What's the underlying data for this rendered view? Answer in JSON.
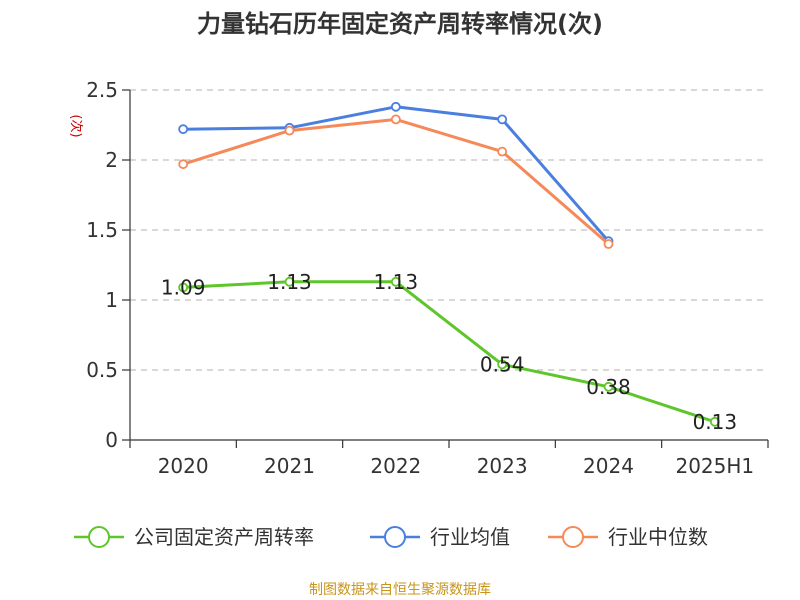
{
  "title": "力量钻石历年固定资产周转率情况(次)",
  "unit_label": "(次)",
  "source": "制图数据来自恒生聚源数据库",
  "colors": {
    "company": "#5ec52a",
    "industry_avg": "#4a7fe0",
    "industry_median": "#f5895a",
    "grid": "#c0c0c0",
    "axis": "#333333",
    "source": "#c8941a"
  },
  "chart_data": {
    "type": "line",
    "title": "力量钻石历年固定资产周转率情况(次)",
    "ylabel": "(次)",
    "categories": [
      "2020",
      "2021",
      "2022",
      "2023",
      "2024",
      "2025H1"
    ],
    "ylim": [
      0,
      2.5
    ],
    "yticks": [
      "0",
      "0.5",
      "1",
      "1.5",
      "2",
      "2.5"
    ],
    "grid": true,
    "legend_position": "bottom",
    "series": [
      {
        "name": "公司固定资产周转率",
        "key": "company",
        "values": [
          1.09,
          1.13,
          1.13,
          0.54,
          0.38,
          0.13
        ],
        "labels": [
          "1.09",
          "1.13",
          "1.13",
          "0.54",
          "0.38",
          "0.13"
        ]
      },
      {
        "name": "行业均值",
        "key": "industry_avg",
        "values": [
          2.22,
          2.23,
          2.38,
          2.29,
          1.42,
          null
        ]
      },
      {
        "name": "行业中位数",
        "key": "industry_median",
        "values": [
          1.97,
          2.21,
          2.29,
          2.06,
          1.4,
          null
        ]
      }
    ]
  }
}
